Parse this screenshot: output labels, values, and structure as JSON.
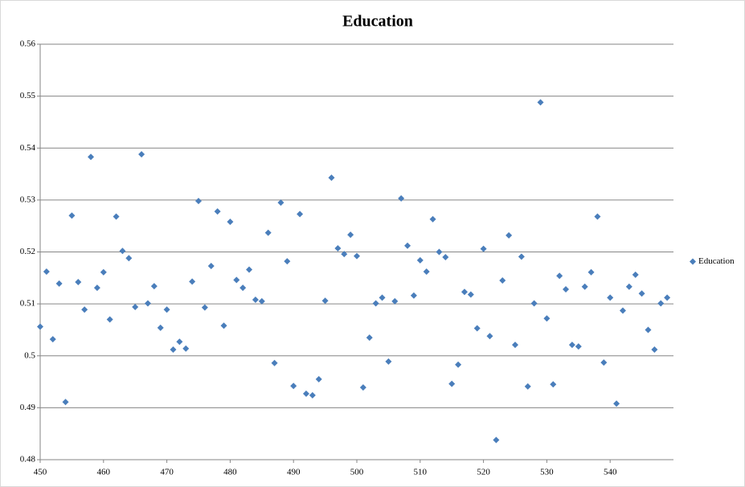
{
  "chart_data": {
    "type": "scatter",
    "title": "Education",
    "series": [
      {
        "name": "Education",
        "color": "#4a7ebb",
        "x": [
          450,
          451,
          452,
          453,
          454,
          455,
          456,
          457,
          458,
          459,
          460,
          461,
          462,
          463,
          464,
          465,
          466,
          467,
          468,
          469,
          470,
          471,
          472,
          473,
          474,
          475,
          476,
          477,
          478,
          479,
          480,
          481,
          482,
          483,
          484,
          485,
          486,
          487,
          488,
          489,
          490,
          491,
          492,
          493,
          494,
          495,
          496,
          497,
          498,
          499,
          500,
          501,
          502,
          503,
          504,
          505,
          506,
          507,
          508,
          509,
          510,
          511,
          512,
          513,
          514,
          515,
          516,
          517,
          518,
          519,
          520,
          521,
          522,
          523,
          524,
          525,
          526,
          527,
          528,
          529,
          530,
          531,
          532,
          533,
          534,
          535,
          536,
          537,
          538,
          539,
          540,
          541,
          542,
          543,
          544,
          545,
          546,
          547,
          548,
          549
        ],
        "values": [
          0.5056,
          0.5162,
          0.5032,
          0.5139,
          0.4911,
          0.527,
          0.5142,
          0.5089,
          0.5383,
          0.5131,
          0.5161,
          0.507,
          0.5268,
          0.5202,
          0.5188,
          0.5094,
          0.5388,
          0.5101,
          0.5134,
          0.5054,
          0.5089,
          0.5012,
          0.5027,
          0.5014,
          0.5143,
          0.5298,
          0.5093,
          0.5173,
          0.5278,
          0.5058,
          0.5258,
          0.5146,
          0.5131,
          0.5166,
          0.5108,
          0.5105,
          0.5237,
          0.4986,
          0.5295,
          0.5182,
          0.4942,
          0.5273,
          0.4927,
          0.4924,
          0.4955,
          0.5106,
          0.5343,
          0.5207,
          0.5196,
          0.5233,
          0.5192,
          0.4939,
          0.5035,
          0.5101,
          0.5112,
          0.4989,
          0.5105,
          0.5303,
          0.5212,
          0.5116,
          0.5184,
          0.5162,
          0.5263,
          0.52,
          0.519,
          0.4946,
          0.4983,
          0.5123,
          0.5118,
          0.5053,
          0.5206,
          0.5038,
          0.4838,
          0.5145,
          0.5232,
          0.5021,
          0.5191,
          0.4941,
          0.5101,
          0.5488,
          0.5072,
          0.4945,
          0.5154,
          0.5128,
          0.5021,
          0.5018,
          0.5133,
          0.5161,
          0.5268,
          0.4987,
          0.5112,
          0.4908,
          0.5087,
          0.5133,
          0.5156,
          0.512,
          0.505,
          0.5012,
          0.5101,
          0.5112
        ]
      }
    ],
    "xlim": [
      450,
      550
    ],
    "xticks": [
      450,
      460,
      470,
      480,
      490,
      500,
      510,
      520,
      530,
      540
    ],
    "ylim": [
      0.48,
      0.56
    ],
    "yticks": [
      0.48,
      0.49,
      {
        "value": 0.5,
        "label": "0.5"
      },
      0.51,
      0.52,
      0.53,
      0.54,
      0.55,
      0.56
    ],
    "grid": true,
    "legend": "right"
  }
}
